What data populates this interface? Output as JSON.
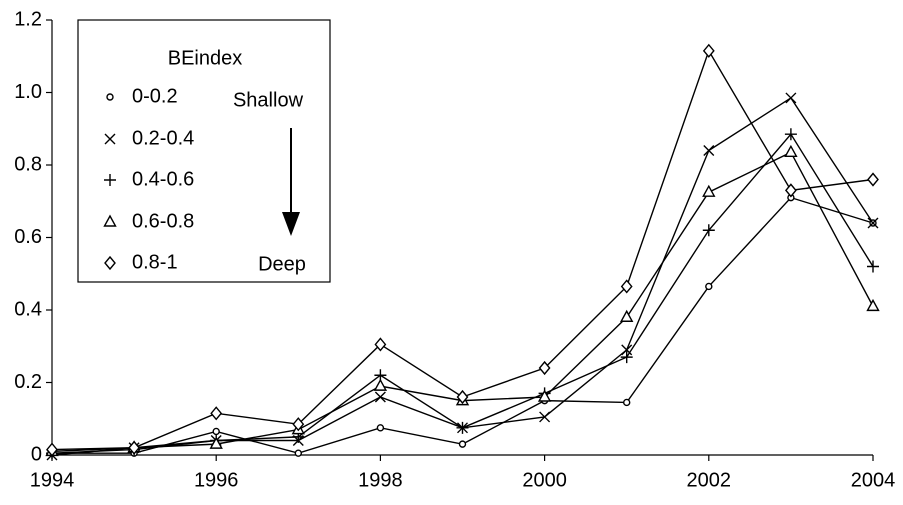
{
  "chart_data": {
    "type": "line",
    "x": [
      1994,
      1995,
      1996,
      1997,
      1998,
      1999,
      2000,
      2001,
      2002,
      2003,
      2004
    ],
    "xlim": [
      1994,
      2004
    ],
    "xticks": [
      1994,
      1996,
      1998,
      2000,
      2002,
      2004
    ],
    "ylim": [
      0,
      1.2
    ],
    "yticks": [
      0,
      0.2,
      0.4,
      0.6,
      0.8,
      {
        "value": 1.0,
        "label": "1.0"
      },
      1.2
    ],
    "grid": false,
    "legend_title": "BEindex",
    "legend_position": "upper left",
    "annotations": [
      "Shallow",
      "Deep"
    ],
    "series": [
      {
        "name": "0-0.2",
        "color": "#000000",
        "marker": "circle",
        "values": [
          0.005,
          0.005,
          0.065,
          0.005,
          0.075,
          0.03,
          0.15,
          0.145,
          0.465,
          0.71,
          0.64
        ]
      },
      {
        "name": "0.2-0.4",
        "color": "#000000",
        "marker": "x",
        "values": [
          0.0,
          0.02,
          0.04,
          0.04,
          0.16,
          0.075,
          0.105,
          0.29,
          0.84,
          0.985,
          0.64
        ]
      },
      {
        "name": "0.4-0.6",
        "color": "#000000",
        "marker": "plus",
        "values": [
          0.005,
          0.015,
          0.04,
          0.05,
          0.22,
          0.075,
          0.17,
          0.27,
          0.62,
          0.885,
          0.52
        ]
      },
      {
        "name": "0.6-0.8",
        "color": "#000000",
        "marker": "triangle",
        "values": [
          0.01,
          0.02,
          0.03,
          0.07,
          0.19,
          0.15,
          0.16,
          0.38,
          0.725,
          0.835,
          0.41
        ]
      },
      {
        "name": "0.8-1",
        "color": "#000000",
        "marker": "diamond",
        "values": [
          0.015,
          0.02,
          0.115,
          0.085,
          0.305,
          0.16,
          0.24,
          0.465,
          1.115,
          0.73,
          0.76
        ]
      }
    ]
  }
}
